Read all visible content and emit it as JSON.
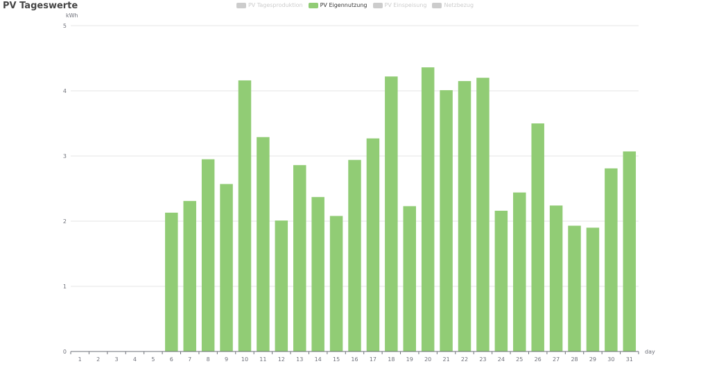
{
  "title": "PV Tageswerte",
  "legend": [
    {
      "label": "PV Tagesproduktion",
      "color": "#cccccc",
      "active": false
    },
    {
      "label": "PV Eigennutzung",
      "color": "#91cc75",
      "active": true
    },
    {
      "label": "PV Einspeisung",
      "color": "#cccccc",
      "active": false
    },
    {
      "label": "Netzbezug",
      "color": "#cccccc",
      "active": false
    }
  ],
  "chart_data": {
    "type": "bar",
    "ylabel": "kWh",
    "xlabel": "day",
    "ylim": [
      0,
      5
    ],
    "yticks": [
      0,
      1,
      2,
      3,
      4,
      5
    ],
    "grid": true,
    "bar_color": "#91cc75",
    "categories": [
      "1",
      "2",
      "3",
      "4",
      "5",
      "6",
      "7",
      "8",
      "9",
      "10",
      "11",
      "12",
      "13",
      "14",
      "15",
      "16",
      "17",
      "18",
      "19",
      "20",
      "21",
      "22",
      "23",
      "24",
      "25",
      "26",
      "27",
      "28",
      "29",
      "30",
      "31"
    ],
    "series": [
      {
        "name": "PV Eigennutzung",
        "values": [
          0,
          0,
          0,
          0,
          0,
          2.13,
          2.31,
          2.95,
          2.57,
          4.16,
          3.29,
          2.01,
          2.86,
          2.37,
          2.08,
          2.94,
          3.27,
          4.22,
          2.23,
          4.36,
          4.01,
          4.15,
          4.2,
          2.16,
          2.44,
          3.5,
          2.24,
          1.93,
          1.9,
          2.81,
          3.07
        ]
      }
    ]
  }
}
